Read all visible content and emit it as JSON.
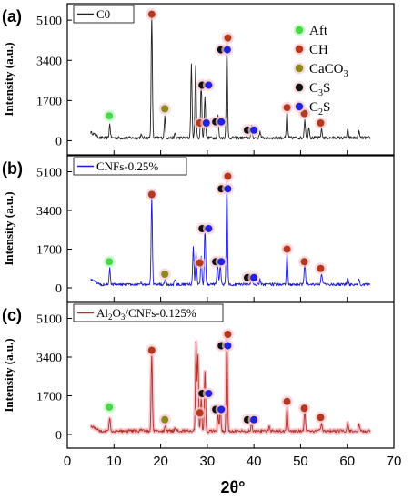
{
  "figure": {
    "xlabel": "2θ°"
  },
  "legend": {
    "items": [
      {
        "label": "Aft",
        "sub": "",
        "color": "#4cd64c"
      },
      {
        "label": "CH",
        "sub": "",
        "color": "#b5391f"
      },
      {
        "label": "CaCO",
        "sub": "3",
        "color": "#8a8a1a"
      },
      {
        "label": "C",
        "sub": "3",
        "tail": "S",
        "color": "#111111"
      },
      {
        "label": "C",
        "sub": "2",
        "tail": "S",
        "color": "#2222dd"
      }
    ]
  },
  "chart_data": [
    {
      "type": "line",
      "panel_label": "(a)",
      "series": [
        {
          "name": "C0",
          "color": "#222222"
        }
      ],
      "ylabel": "Intensity (a.u.)",
      "yticks": [
        0,
        1700,
        3400,
        5100
      ],
      "ylim": [
        -600,
        5800
      ],
      "xlim": [
        0,
        70
      ],
      "xticks": [
        0,
        10,
        20,
        30,
        40,
        50,
        60,
        70
      ],
      "baseline": 120,
      "peaks": [
        {
          "x": 9.1,
          "y": 700
        },
        {
          "x": 15.8,
          "y": 250
        },
        {
          "x": 18.1,
          "y": 5300
        },
        {
          "x": 20.9,
          "y": 1000
        },
        {
          "x": 23.1,
          "y": 300
        },
        {
          "x": 26.6,
          "y": 3200
        },
        {
          "x": 27.5,
          "y": 3250
        },
        {
          "x": 28.7,
          "y": 2500
        },
        {
          "x": 29.5,
          "y": 1900
        },
        {
          "x": 32.3,
          "y": 1100
        },
        {
          "x": 34.2,
          "y": 4300
        },
        {
          "x": 39.5,
          "y": 600
        },
        {
          "x": 41.3,
          "y": 400
        },
        {
          "x": 47.1,
          "y": 1300
        },
        {
          "x": 50.9,
          "y": 900
        },
        {
          "x": 51.8,
          "y": 600
        },
        {
          "x": 54.5,
          "y": 500
        },
        {
          "x": 60.1,
          "y": 450
        },
        {
          "x": 62.5,
          "y": 400
        }
      ],
      "markers": [
        {
          "phase": "Aft",
          "x": 9.0,
          "y": 1050
        },
        {
          "phase": "CH",
          "x": 18.1,
          "y": 5350
        },
        {
          "phase": "CaCO3",
          "x": 20.9,
          "y": 1350
        },
        {
          "phase": "C3S",
          "x": 28.9,
          "y": 2350
        },
        {
          "phase": "C2S",
          "x": 30.3,
          "y": 2350
        },
        {
          "phase": "CH",
          "x": 28.4,
          "y": 750
        },
        {
          "phase": "C2S",
          "x": 29.8,
          "y": 750
        },
        {
          "phase": "C3S",
          "x": 31.8,
          "y": 800
        },
        {
          "phase": "C2S",
          "x": 33.0,
          "y": 800
        },
        {
          "phase": "C3S",
          "x": 32.9,
          "y": 3850
        },
        {
          "phase": "C2S",
          "x": 34.3,
          "y": 3850
        },
        {
          "phase": "CH",
          "x": 34.4,
          "y": 4350
        },
        {
          "phase": "C3S",
          "x": 38.6,
          "y": 450
        },
        {
          "phase": "C2S",
          "x": 40.0,
          "y": 450
        },
        {
          "phase": "CH",
          "x": 47.1,
          "y": 1400
        },
        {
          "phase": "CH",
          "x": 50.8,
          "y": 1150
        },
        {
          "phase": "CH",
          "x": 54.3,
          "y": 750
        }
      ]
    },
    {
      "type": "line",
      "panel_label": "(b)",
      "series": [
        {
          "name": "CNFs-0.25%",
          "color": "#1a1ad6"
        }
      ],
      "ylabel": "Intensity (a.u.)",
      "yticks": [
        0,
        1700,
        3400,
        5100
      ],
      "ylim": [
        -600,
        5800
      ],
      "xlim": [
        0,
        70
      ],
      "xticks": [
        0,
        10,
        20,
        30,
        40,
        50,
        60,
        70
      ],
      "baseline": 150,
      "peaks": [
        {
          "x": 9.1,
          "y": 850
        },
        {
          "x": 15.8,
          "y": 250
        },
        {
          "x": 18.1,
          "y": 4000
        },
        {
          "x": 21.0,
          "y": 350
        },
        {
          "x": 23.1,
          "y": 350
        },
        {
          "x": 27.0,
          "y": 1750
        },
        {
          "x": 27.6,
          "y": 1650
        },
        {
          "x": 28.7,
          "y": 1400
        },
        {
          "x": 29.5,
          "y": 2700
        },
        {
          "x": 32.2,
          "y": 1100
        },
        {
          "x": 32.8,
          "y": 1000
        },
        {
          "x": 34.2,
          "y": 4800
        },
        {
          "x": 39.5,
          "y": 500
        },
        {
          "x": 41.3,
          "y": 350
        },
        {
          "x": 47.1,
          "y": 1550
        },
        {
          "x": 50.9,
          "y": 1100
        },
        {
          "x": 54.5,
          "y": 600
        },
        {
          "x": 60.1,
          "y": 400
        },
        {
          "x": 62.5,
          "y": 400
        }
      ],
      "markers": [
        {
          "phase": "Aft",
          "x": 9.0,
          "y": 1150
        },
        {
          "phase": "CH",
          "x": 18.1,
          "y": 4100
        },
        {
          "phase": "CaCO3",
          "x": 20.9,
          "y": 600
        },
        {
          "phase": "C3S",
          "x": 28.9,
          "y": 2600
        },
        {
          "phase": "C2S",
          "x": 30.3,
          "y": 2600
        },
        {
          "phase": "CH",
          "x": 28.4,
          "y": 1100
        },
        {
          "phase": "C3S",
          "x": 31.8,
          "y": 1150
        },
        {
          "phase": "C2S",
          "x": 33.0,
          "y": 1150
        },
        {
          "phase": "C3S",
          "x": 33.0,
          "y": 4350
        },
        {
          "phase": "C2S",
          "x": 34.4,
          "y": 4350
        },
        {
          "phase": "CH",
          "x": 34.4,
          "y": 4900
        },
        {
          "phase": "C3S",
          "x": 38.6,
          "y": 450
        },
        {
          "phase": "C2S",
          "x": 40.0,
          "y": 450
        },
        {
          "phase": "CH",
          "x": 47.1,
          "y": 1700
        },
        {
          "phase": "CH",
          "x": 50.8,
          "y": 1150
        },
        {
          "phase": "CH",
          "x": 54.3,
          "y": 850
        }
      ]
    },
    {
      "type": "line",
      "panel_label": "(c)",
      "series": [
        {
          "name": "Al2O3/CNFs-0.125%",
          "name_parts": [
            "Al",
            "2",
            "O",
            "3",
            "/CNFs-0.125%"
          ],
          "color": "#b0302a"
        }
      ],
      "ylabel": "Intensity (a.u.)",
      "yticks": [
        0,
        1700,
        3400,
        5100
      ],
      "ylim": [
        -600,
        5800
      ],
      "xlim": [
        0,
        70
      ],
      "xticks": [
        0,
        10,
        20,
        30,
        40,
        50,
        60,
        70
      ],
      "baseline": 150,
      "peaks": [
        {
          "x": 9.1,
          "y": 750
        },
        {
          "x": 15.8,
          "y": 250
        },
        {
          "x": 18.1,
          "y": 3600
        },
        {
          "x": 21.0,
          "y": 350
        },
        {
          "x": 23.1,
          "y": 300
        },
        {
          "x": 27.6,
          "y": 4100
        },
        {
          "x": 28.0,
          "y": 3500
        },
        {
          "x": 28.7,
          "y": 1600
        },
        {
          "x": 29.5,
          "y": 2800
        },
        {
          "x": 32.3,
          "y": 900
        },
        {
          "x": 32.8,
          "y": 1200
        },
        {
          "x": 34.2,
          "y": 4300
        },
        {
          "x": 39.5,
          "y": 500
        },
        {
          "x": 43.3,
          "y": 350
        },
        {
          "x": 47.1,
          "y": 1200
        },
        {
          "x": 50.9,
          "y": 1000
        },
        {
          "x": 54.5,
          "y": 550
        },
        {
          "x": 60.1,
          "y": 500
        },
        {
          "x": 62.5,
          "y": 400
        }
      ],
      "markers": [
        {
          "phase": "Aft",
          "x": 9.0,
          "y": 1200
        },
        {
          "phase": "CH",
          "x": 18.1,
          "y": 3700
        },
        {
          "phase": "CaCO3",
          "x": 20.9,
          "y": 650
        },
        {
          "phase": "C3S",
          "x": 28.9,
          "y": 1800
        },
        {
          "phase": "C2S",
          "x": 30.3,
          "y": 1800
        },
        {
          "phase": "CH",
          "x": 28.4,
          "y": 950
        },
        {
          "phase": "C3S",
          "x": 31.8,
          "y": 1100
        },
        {
          "phase": "C2S",
          "x": 33.0,
          "y": 1100
        },
        {
          "phase": "C3S",
          "x": 33.0,
          "y": 3900
        },
        {
          "phase": "C2S",
          "x": 34.4,
          "y": 3900
        },
        {
          "phase": "CH",
          "x": 34.4,
          "y": 4400
        },
        {
          "phase": "C3S",
          "x": 38.6,
          "y": 650
        },
        {
          "phase": "C2S",
          "x": 40.0,
          "y": 650
        },
        {
          "phase": "CH",
          "x": 47.1,
          "y": 1450
        },
        {
          "phase": "CH",
          "x": 50.8,
          "y": 1150
        },
        {
          "phase": "CH",
          "x": 54.3,
          "y": 750
        }
      ]
    }
  ]
}
